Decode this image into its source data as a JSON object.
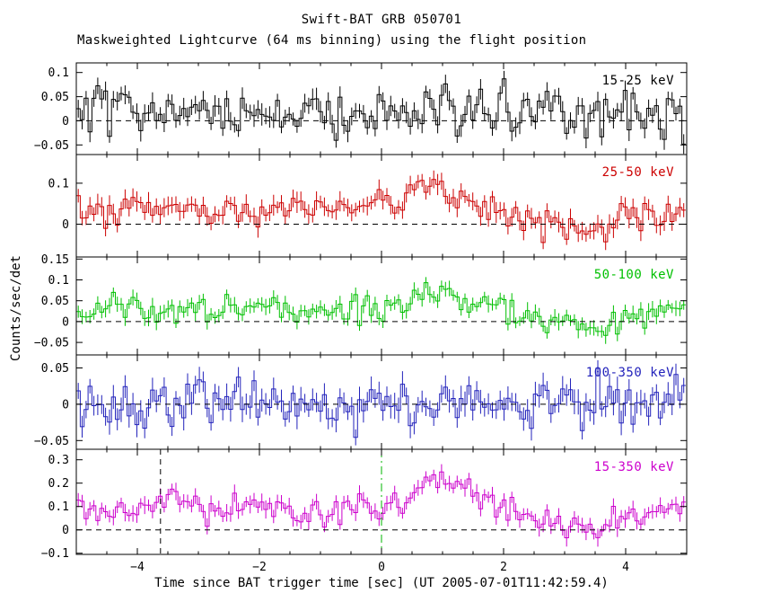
{
  "title": "Swift-BAT GRB 050701",
  "subtitle": "Maskweighted Lightcurve (64 ms binning) using the flight position",
  "ylabel": "Counts/sec/det",
  "xlabel": "Time since BAT trigger time [sec] (UT 2005-07-01T11:42:59.4)",
  "chart_data": {
    "type": "line",
    "x_range": [
      -5,
      5
    ],
    "x_ticks": [
      -4,
      -2,
      0,
      2,
      4
    ],
    "x_minor_step": 0.5,
    "bin_sec": 0.064,
    "grid": false,
    "legend_position": "inside-top-right-per-panel",
    "panels": [
      {
        "label": "15-25 keV",
        "color": "#000000",
        "ylim": [
          -0.07,
          0.12
        ],
        "yticks": [
          0.1,
          0.05,
          0,
          -0.05
        ],
        "baseline": 0,
        "noise_sigma": 0.026,
        "error_bar": 0.018,
        "envelope": {
          "x": [
            -5,
            -4,
            -3,
            -2,
            -1,
            0,
            1,
            2,
            3,
            4,
            5
          ],
          "y": [
            0.02,
            0.025,
            0.018,
            0.022,
            0.02,
            0.025,
            0.028,
            0.02,
            0.015,
            0.02,
            0.022
          ]
        }
      },
      {
        "label": "25-50 keV",
        "color": "#cc0000",
        "ylim": [
          -0.08,
          0.17
        ],
        "yticks": [
          0.1,
          0
        ],
        "baseline": 0,
        "noise_sigma": 0.02,
        "error_bar": 0.02,
        "envelope": {
          "x": [
            -5,
            -4,
            -3,
            -2,
            -1,
            -0.5,
            0,
            0.4,
            0.7,
            0.9,
            1.2,
            1.6,
            2,
            2.5,
            3,
            3.4,
            3.8,
            4.3,
            5
          ],
          "y": [
            0.03,
            0.035,
            0.03,
            0.035,
            0.04,
            0.045,
            0.05,
            0.06,
            0.075,
            0.09,
            0.065,
            0.045,
            0.025,
            0.005,
            -0.005,
            -0.02,
            0.0,
            0.02,
            0.03
          ]
        }
      },
      {
        "label": "50-100 keV",
        "color": "#00c000",
        "ylim": [
          -0.08,
          0.155
        ],
        "yticks": [
          0.15,
          0.1,
          0.05,
          0,
          -0.05
        ],
        "baseline": 0,
        "noise_sigma": 0.018,
        "error_bar": 0.016,
        "envelope": {
          "x": [
            -5,
            -4.4,
            -3.8,
            -3,
            -2.2,
            -1.5,
            -1,
            -0.5,
            0,
            0.4,
            0.7,
            0.9,
            1.2,
            1.6,
            2,
            2.5,
            3,
            3.4,
            3.8,
            4.4,
            5
          ],
          "y": [
            0.02,
            0.05,
            0.02,
            0.025,
            0.035,
            0.02,
            0.03,
            0.03,
            0.035,
            0.05,
            0.065,
            0.075,
            0.055,
            0.04,
            0.03,
            0.015,
            0.0,
            -0.02,
            0.0,
            0.025,
            0.03
          ]
        }
      },
      {
        "label": "100-350 keV",
        "color": "#2222bb",
        "ylim": [
          -0.062,
          0.068
        ],
        "yticks": [
          0.05,
          0,
          -0.05
        ],
        "baseline": 0,
        "noise_sigma": 0.016,
        "error_bar": 0.014,
        "envelope": {
          "x": [
            -5,
            -3,
            -1,
            0,
            0.9,
            2,
            3,
            4,
            5
          ],
          "y": [
            0.0,
            0.002,
            0.0,
            0.003,
            0.008,
            0.002,
            0.0,
            0.001,
            0.0
          ]
        }
      },
      {
        "label": "15-350 keV",
        "color": "#cc00cc",
        "ylim": [
          -0.105,
          0.345
        ],
        "yticks": [
          0.3,
          0.2,
          0.1,
          0,
          -0.1
        ],
        "baseline": 0,
        "noise_sigma": 0.032,
        "error_bar": 0.03,
        "envelope": {
          "x": [
            -5,
            -4.5,
            -4,
            -3.6,
            -3.2,
            -2.8,
            -2.4,
            -2,
            -1.5,
            -1,
            -0.5,
            0,
            0.3,
            0.6,
            0.85,
            1.1,
            1.4,
            1.8,
            2.2,
            2.6,
            3,
            3.4,
            3.8,
            4.3,
            4.7,
            5
          ],
          "y": [
            0.07,
            0.09,
            0.11,
            0.13,
            0.1,
            0.08,
            0.1,
            0.11,
            0.09,
            0.08,
            0.09,
            0.1,
            0.12,
            0.18,
            0.24,
            0.21,
            0.16,
            0.11,
            0.07,
            0.04,
            0.02,
            -0.02,
            0.02,
            0.07,
            0.09,
            0.08
          ]
        }
      }
    ],
    "zero_line": {
      "style": "dashed",
      "color": "#000000"
    },
    "markers": [
      {
        "panel": 4,
        "x": -3.62,
        "style": "dashed",
        "color": "#000000"
      },
      {
        "panel": 4,
        "x": 0,
        "style": "dashdot",
        "color": "#00b400"
      }
    ]
  }
}
